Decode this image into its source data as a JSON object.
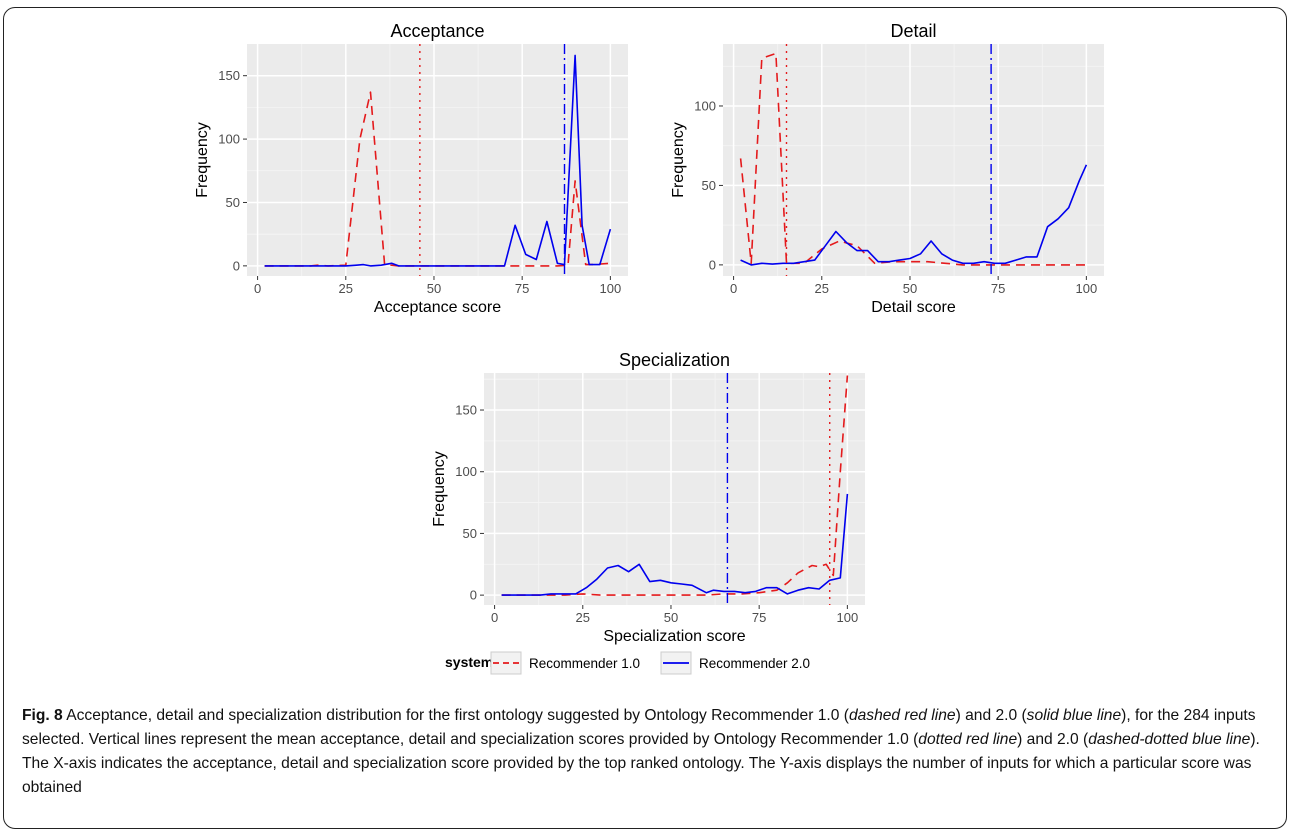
{
  "chart_data": [
    {
      "type": "line",
      "title": "Acceptance",
      "xlabel": "Acceptance score",
      "ylabel": "Frequency",
      "xlim": [
        -3,
        105
      ],
      "ylim": [
        -8,
        175
      ],
      "xticks": [
        0,
        25,
        50,
        75,
        100
      ],
      "yticks": [
        0,
        50,
        100,
        150
      ],
      "grid": true,
      "series": [
        {
          "name": "Recommender 1.0",
          "x": [
            2,
            5,
            10,
            15,
            17,
            20,
            25,
            29,
            32,
            36,
            40,
            45,
            50,
            55,
            60,
            65,
            70,
            75,
            80,
            85,
            88,
            90,
            93,
            95,
            100
          ],
          "y": [
            0,
            0,
            0,
            0,
            0.5,
            0,
            0.5,
            100,
            137,
            1,
            0,
            0,
            0,
            0,
            0,
            0,
            0,
            0,
            0,
            0,
            0.5,
            67,
            1,
            1,
            2
          ]
        },
        {
          "name": "Recommender 2.0",
          "x": [
            2,
            10,
            15,
            20,
            25,
            28,
            30,
            32,
            35,
            38,
            40,
            45,
            50,
            55,
            60,
            65,
            70,
            73,
            76,
            79,
            82,
            85,
            87,
            90,
            92,
            94,
            97,
            100
          ],
          "y": [
            0,
            0,
            0,
            0,
            0,
            0.5,
            1,
            0,
            0.5,
            2,
            0,
            0,
            0,
            0,
            0,
            0,
            0,
            32,
            9,
            5,
            35,
            2,
            1,
            166,
            32,
            1,
            1,
            29
          ]
        }
      ],
      "vlines": [
        {
          "series": "Recommender 1.0",
          "x": 46
        },
        {
          "series": "Recommender 2.0",
          "x": 87
        }
      ]
    },
    {
      "type": "line",
      "title": "Detail",
      "xlabel": "Detail score",
      "ylabel": "Frequency",
      "xlim": [
        -3,
        105
      ],
      "ylim": [
        -7,
        139
      ],
      "xticks": [
        0,
        25,
        50,
        75,
        100
      ],
      "yticks": [
        0,
        50,
        100
      ],
      "grid": true,
      "series": [
        {
          "name": "Recommender 1.0",
          "x": [
            2,
            5,
            8,
            12,
            15,
            20,
            25,
            30,
            35,
            40,
            45,
            50,
            55,
            60,
            65,
            70,
            75,
            80,
            85,
            90,
            95,
            100
          ],
          "y": [
            67,
            1,
            130,
            133,
            1,
            1,
            10,
            15,
            12,
            1,
            2,
            2,
            2,
            1,
            0,
            0,
            0,
            0,
            0,
            0,
            0,
            0
          ]
        },
        {
          "name": "Recommender 2.0",
          "x": [
            2,
            5,
            8,
            11,
            14,
            17,
            20,
            23,
            26,
            29,
            32,
            35,
            38,
            41,
            44,
            47,
            50,
            53,
            56,
            59,
            62,
            65,
            68,
            71,
            74,
            77,
            80,
            83,
            86,
            89,
            92,
            95,
            98,
            100
          ],
          "y": [
            3,
            0,
            1,
            0.5,
            1,
            1,
            2,
            3,
            12,
            21,
            14,
            9,
            9,
            2,
            2,
            3,
            4,
            7,
            15,
            7,
            3,
            1,
            1,
            2,
            1,
            1,
            3,
            5,
            5,
            24,
            29,
            36,
            53,
            63
          ]
        }
      ],
      "vlines": [
        {
          "series": "Recommender 1.0",
          "x": 15
        },
        {
          "series": "Recommender 2.0",
          "x": 73
        }
      ]
    },
    {
      "type": "line",
      "title": "Specialization",
      "xlabel": "Specialization score",
      "ylabel": "Frequency",
      "xlim": [
        -3,
        105
      ],
      "ylim": [
        -8,
        180
      ],
      "xticks": [
        0,
        25,
        50,
        75,
        100
      ],
      "yticks": [
        0,
        50,
        100,
        150
      ],
      "grid": true,
      "series": [
        {
          "name": "Recommender 1.0",
          "x": [
            2,
            10,
            15,
            20,
            25,
            30,
            35,
            40,
            45,
            50,
            55,
            60,
            65,
            70,
            75,
            80,
            83,
            86,
            88,
            90,
            92,
            94,
            96,
            98,
            100
          ],
          "y": [
            0,
            0,
            0,
            0,
            1,
            0,
            0,
            0,
            0,
            0,
            0,
            0,
            1,
            1,
            2,
            4,
            10,
            18,
            21,
            24,
            23,
            25,
            16,
            100,
            178
          ]
        },
        {
          "name": "Recommender 2.0",
          "x": [
            2,
            10,
            13,
            16,
            20,
            23,
            26,
            29,
            32,
            35,
            38,
            41,
            44,
            47,
            50,
            53,
            56,
            60,
            62,
            65,
            68,
            71,
            74,
            77,
            80,
            83,
            86,
            89,
            92,
            95,
            98,
            100
          ],
          "y": [
            0,
            0,
            0,
            1,
            1,
            1,
            6,
            13,
            22,
            24,
            19,
            25,
            11,
            12,
            10,
            9,
            8,
            2,
            4,
            3,
            3,
            2,
            3,
            6,
            6,
            1,
            4,
            6,
            5,
            12,
            14,
            82
          ]
        }
      ],
      "vlines": [
        {
          "series": "Recommender 1.0",
          "x": 95
        },
        {
          "series": "Recommender 2.0",
          "x": 66
        }
      ]
    }
  ],
  "legend": {
    "title": "system",
    "items": [
      {
        "label": "Recommender 1.0",
        "color": "#e41a1c",
        "style": "dashed"
      },
      {
        "label": "Recommender 2.0",
        "color": "#0000ee",
        "style": "solid"
      }
    ]
  },
  "colors": {
    "recommender_1": "#e41a1c",
    "recommender_2": "#0000ee",
    "panel_bg": "#ebebeb",
    "grid": "#ffffff"
  },
  "caption": {
    "label": "Fig. 8",
    "t1": " Acceptance, detail and specialization distribution for the first ontology suggested by Ontology Recommender 1.0 (",
    "i1": "dashed red line",
    "t2": ") and 2.0 (",
    "i2": "solid blue line",
    "t3": "), for the 284 inputs selected. Vertical lines represent the mean acceptance, detail and specialization scores provided by Ontology Recommender 1.0 (",
    "i3": "dotted red line",
    "t4": ") and 2.0 (",
    "i4": "dashed-dotted blue line",
    "t5": "). The X-axis indicates the acceptance, detail and specialization score provided by the top ranked ontology. The Y-axis displays the number of inputs for which a particular score was obtained"
  }
}
